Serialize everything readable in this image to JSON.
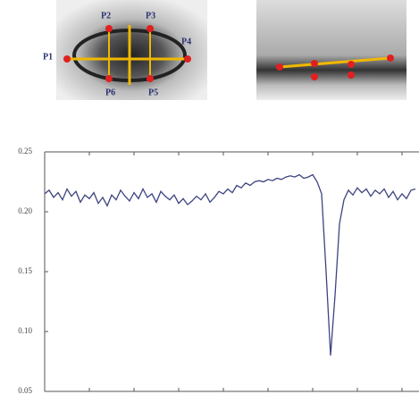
{
  "eye_labels": [
    "P1",
    "P2",
    "P3",
    "P4",
    "P5",
    "P6"
  ],
  "chart_data": {
    "type": "line",
    "x": [
      0,
      1,
      2,
      3,
      4,
      5,
      6,
      7,
      8,
      9,
      10,
      11,
      12,
      13,
      14,
      15,
      16,
      17,
      18,
      19,
      20,
      21,
      22,
      23,
      24,
      25,
      26,
      27,
      28,
      29,
      30,
      31,
      32,
      33,
      34,
      35,
      36,
      37,
      38,
      39,
      40,
      41,
      42,
      43,
      44,
      45,
      46,
      47,
      48,
      49,
      50,
      51,
      52,
      53,
      54,
      55,
      56,
      57,
      58,
      59,
      60,
      61,
      62,
      63,
      64,
      65,
      66,
      67,
      68,
      69,
      70,
      71,
      72,
      73,
      74,
      75,
      76,
      77,
      78,
      79,
      80,
      81,
      82,
      83
    ],
    "series": [
      {
        "color": "#3d4480",
        "values": [
          0.215,
          0.218,
          0.212,
          0.216,
          0.21,
          0.219,
          0.213,
          0.217,
          0.208,
          0.214,
          0.211,
          0.216,
          0.207,
          0.212,
          0.205,
          0.214,
          0.21,
          0.218,
          0.213,
          0.209,
          0.216,
          0.211,
          0.219,
          0.212,
          0.215,
          0.208,
          0.217,
          0.213,
          0.21,
          0.214,
          0.207,
          0.211,
          0.206,
          0.209,
          0.213,
          0.21,
          0.215,
          0.208,
          0.212,
          0.217,
          0.215,
          0.219,
          0.216,
          0.222,
          0.22,
          0.224,
          0.222,
          0.225,
          0.226,
          0.225,
          0.227,
          0.226,
          0.228,
          0.227,
          0.229,
          0.23,
          0.229,
          0.231,
          0.228,
          0.229,
          0.231,
          0.225,
          0.215,
          0.15,
          0.08,
          0.13,
          0.19,
          0.21,
          0.218,
          0.214,
          0.22,
          0.216,
          0.219,
          0.213,
          0.218,
          0.215,
          0.219,
          0.212,
          0.217,
          0.21,
          0.215,
          0.211,
          0.218,
          0.219
        ]
      }
    ],
    "xlim": [
      0,
      83.8
    ],
    "xticks": [
      0,
      10,
      20,
      30,
      40,
      50,
      60,
      70,
      80
    ],
    "ylim": [
      0.05,
      0.25
    ],
    "yticks": [
      {
        "value": 0.05,
        "label": "0.05"
      },
      {
        "value": 0.1,
        "label": "0.10"
      },
      {
        "value": 0.15,
        "label": "0.15"
      },
      {
        "value": 0.2,
        "label": "0.20"
      },
      {
        "value": 0.25,
        "label": "0.25"
      }
    ]
  }
}
